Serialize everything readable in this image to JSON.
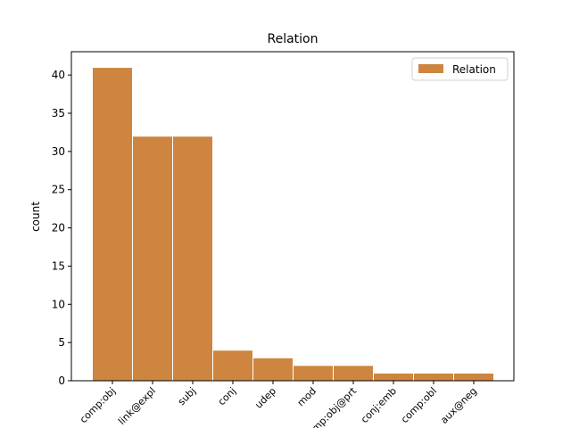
{
  "chart_data": {
    "type": "bar",
    "title": "Relation",
    "y_label": "count",
    "categories": [
      "comp:obj",
      "link@expl",
      "subj",
      "conj",
      "udep",
      "mod",
      "comp:obj@prt",
      "conj:emb",
      "comp:obl",
      "aux@neg"
    ],
    "series": [
      {
        "name": "Relation",
        "color": "#cd853f",
        "values": [
          41,
          32,
          32,
          4,
          3,
          2,
          2,
          1,
          1,
          1
        ]
      }
    ],
    "ylim": [
      0,
      43.05
    ],
    "yticks": [
      0,
      5,
      10,
      15,
      20,
      25,
      30,
      35,
      40
    ],
    "legend": "upper right"
  }
}
